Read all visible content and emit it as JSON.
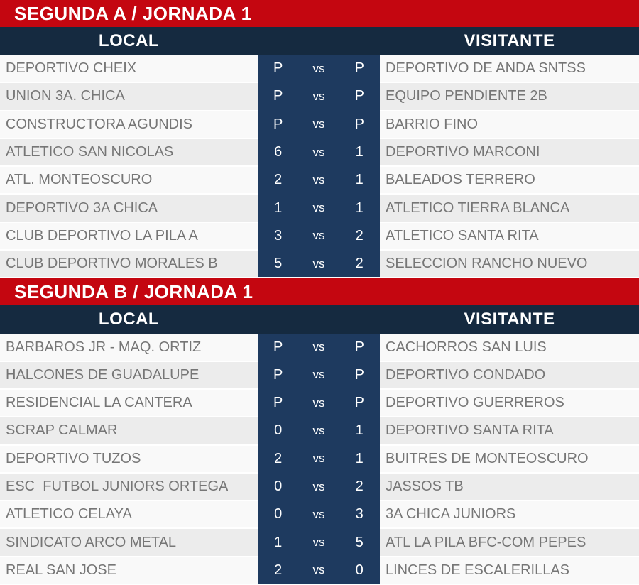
{
  "page": {
    "columns": {
      "local": "LOCAL",
      "visitante": "VISITANTE"
    },
    "vs_label": "vs"
  },
  "colors": {
    "header_red": "#c40610",
    "column_bar_navy": "#152a40",
    "score_column_navy": "#1e3a5f",
    "row_light": "#f9f9f9",
    "row_alt": "#ececec",
    "team_text_gray": "#767676",
    "white_text": "#ffffff"
  },
  "sections": [
    {
      "title": "SEGUNDA A / JORNADA 1",
      "matches": [
        {
          "local_team": "DEPORTIVO CHEIX",
          "local_score": "P",
          "visitor_score": "P",
          "visitor_team": "DEPORTIVO DE ANDA SNTSS"
        },
        {
          "local_team": "UNION 3A. CHICA",
          "local_score": "P",
          "visitor_score": "P",
          "visitor_team": "EQUIPO PENDIENTE 2B"
        },
        {
          "local_team": "CONSTRUCTORA AGUNDIS",
          "local_score": "P",
          "visitor_score": "P",
          "visitor_team": "BARRIO FINO"
        },
        {
          "local_team": "ATLETICO SAN NICOLAS",
          "local_score": "6",
          "visitor_score": "1",
          "visitor_team": "DEPORTIVO MARCONI"
        },
        {
          "local_team": "ATL. MONTEOSCURO",
          "local_score": "2",
          "visitor_score": "1",
          "visitor_team": "BALEADOS TERRERO"
        },
        {
          "local_team": "DEPORTIVO 3A CHICA",
          "local_score": "1",
          "visitor_score": "1",
          "visitor_team": "ATLETICO TIERRA BLANCA"
        },
        {
          "local_team": "CLUB DEPORTIVO LA PILA A",
          "local_score": "3",
          "visitor_score": "2",
          "visitor_team": "ATLETICO SANTA RITA"
        },
        {
          "local_team": "CLUB DEPORTIVO MORALES B",
          "local_score": "5",
          "visitor_score": "2",
          "visitor_team": "SELECCION RANCHO NUEVO"
        }
      ]
    },
    {
      "title": "SEGUNDA B / JORNADA 1",
      "matches": [
        {
          "local_team": "BARBAROS JR - MAQ. ORTIZ",
          "local_score": "P",
          "visitor_score": "P",
          "visitor_team": "CACHORROS SAN LUIS"
        },
        {
          "local_team": "HALCONES DE GUADALUPE",
          "local_score": "P",
          "visitor_score": "P",
          "visitor_team": "DEPORTIVO CONDADO"
        },
        {
          "local_team": "RESIDENCIAL LA CANTERA",
          "local_score": "P",
          "visitor_score": "P",
          "visitor_team": "DEPORTIVO GUERREROS"
        },
        {
          "local_team": "SCRAP CALMAR",
          "local_score": "0",
          "visitor_score": "1",
          "visitor_team": "DEPORTIVO SANTA RITA"
        },
        {
          "local_team": "DEPORTIVO TUZOS",
          "local_score": "2",
          "visitor_score": "1",
          "visitor_team": "BUITRES DE MONTEOSCURO"
        },
        {
          "local_team": "ESC  FUTBOL JUNIORS ORTEGA",
          "local_score": "0",
          "visitor_score": "2",
          "visitor_team": "JASSOS TB"
        },
        {
          "local_team": "ATLETICO CELAYA",
          "local_score": "0",
          "visitor_score": "3",
          "visitor_team": "3A CHICA JUNIORS"
        },
        {
          "local_team": "SINDICATO ARCO METAL",
          "local_score": "1",
          "visitor_score": "5",
          "visitor_team": "ATL LA PILA BFC-COM PEPES"
        },
        {
          "local_team": "REAL SAN JOSE",
          "local_score": "2",
          "visitor_score": "0",
          "visitor_team": "LINCES DE ESCALERILLAS"
        }
      ]
    }
  ]
}
